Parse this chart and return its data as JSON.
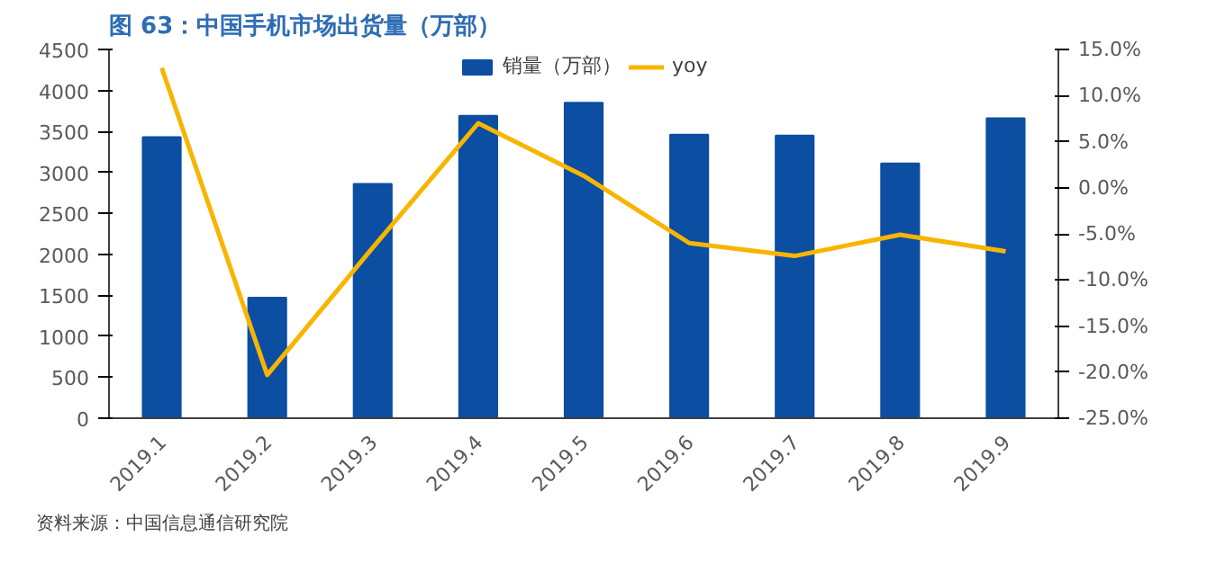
{
  "chart_data": {
    "type": "bar",
    "title": "图 63：中国手机市场出货量（万部）",
    "categories": [
      "2019.1",
      "2019.2",
      "2019.3",
      "2019.4",
      "2019.5",
      "2019.6",
      "2019.7",
      "2019.8",
      "2019.9"
    ],
    "series": [
      {
        "name": "销量（万部）",
        "color": "#0b4ea2",
        "values": [
          3430,
          1470,
          2860,
          3690,
          3850,
          3460,
          3450,
          3110,
          3660
        ]
      },
      {
        "name": "yoy",
        "type": "line",
        "axis": "y2",
        "color": "#f8b500",
        "values": [
          13.0,
          -20.3,
          -6.5,
          7.0,
          1.3,
          -6.0,
          -7.4,
          -5.1,
          -6.9
        ]
      }
    ],
    "ylim": [
      0,
      4500
    ],
    "yticks": [
      0,
      500,
      1000,
      1500,
      2000,
      2500,
      3000,
      3500,
      4000,
      4500
    ],
    "y2lim": [
      -25,
      15
    ],
    "y2ticks": [
      {
        "value": -25,
        "label": "-25.0%"
      },
      {
        "value": -20,
        "label": "-20.0%"
      },
      {
        "value": -15,
        "label": "-15.0%"
      },
      {
        "value": -10,
        "label": "-10.0%"
      },
      {
        "value": -5,
        "label": "-5.0%"
      },
      {
        "value": 0,
        "label": "0.0%"
      },
      {
        "value": 5,
        "label": "5.0%"
      },
      {
        "value": 10,
        "label": "10.0%"
      },
      {
        "value": 15,
        "label": "15.0%"
      }
    ],
    "legend": "top",
    "grid": false,
    "annotations": [
      "资料来源：中国信息通信研究院"
    ]
  }
}
